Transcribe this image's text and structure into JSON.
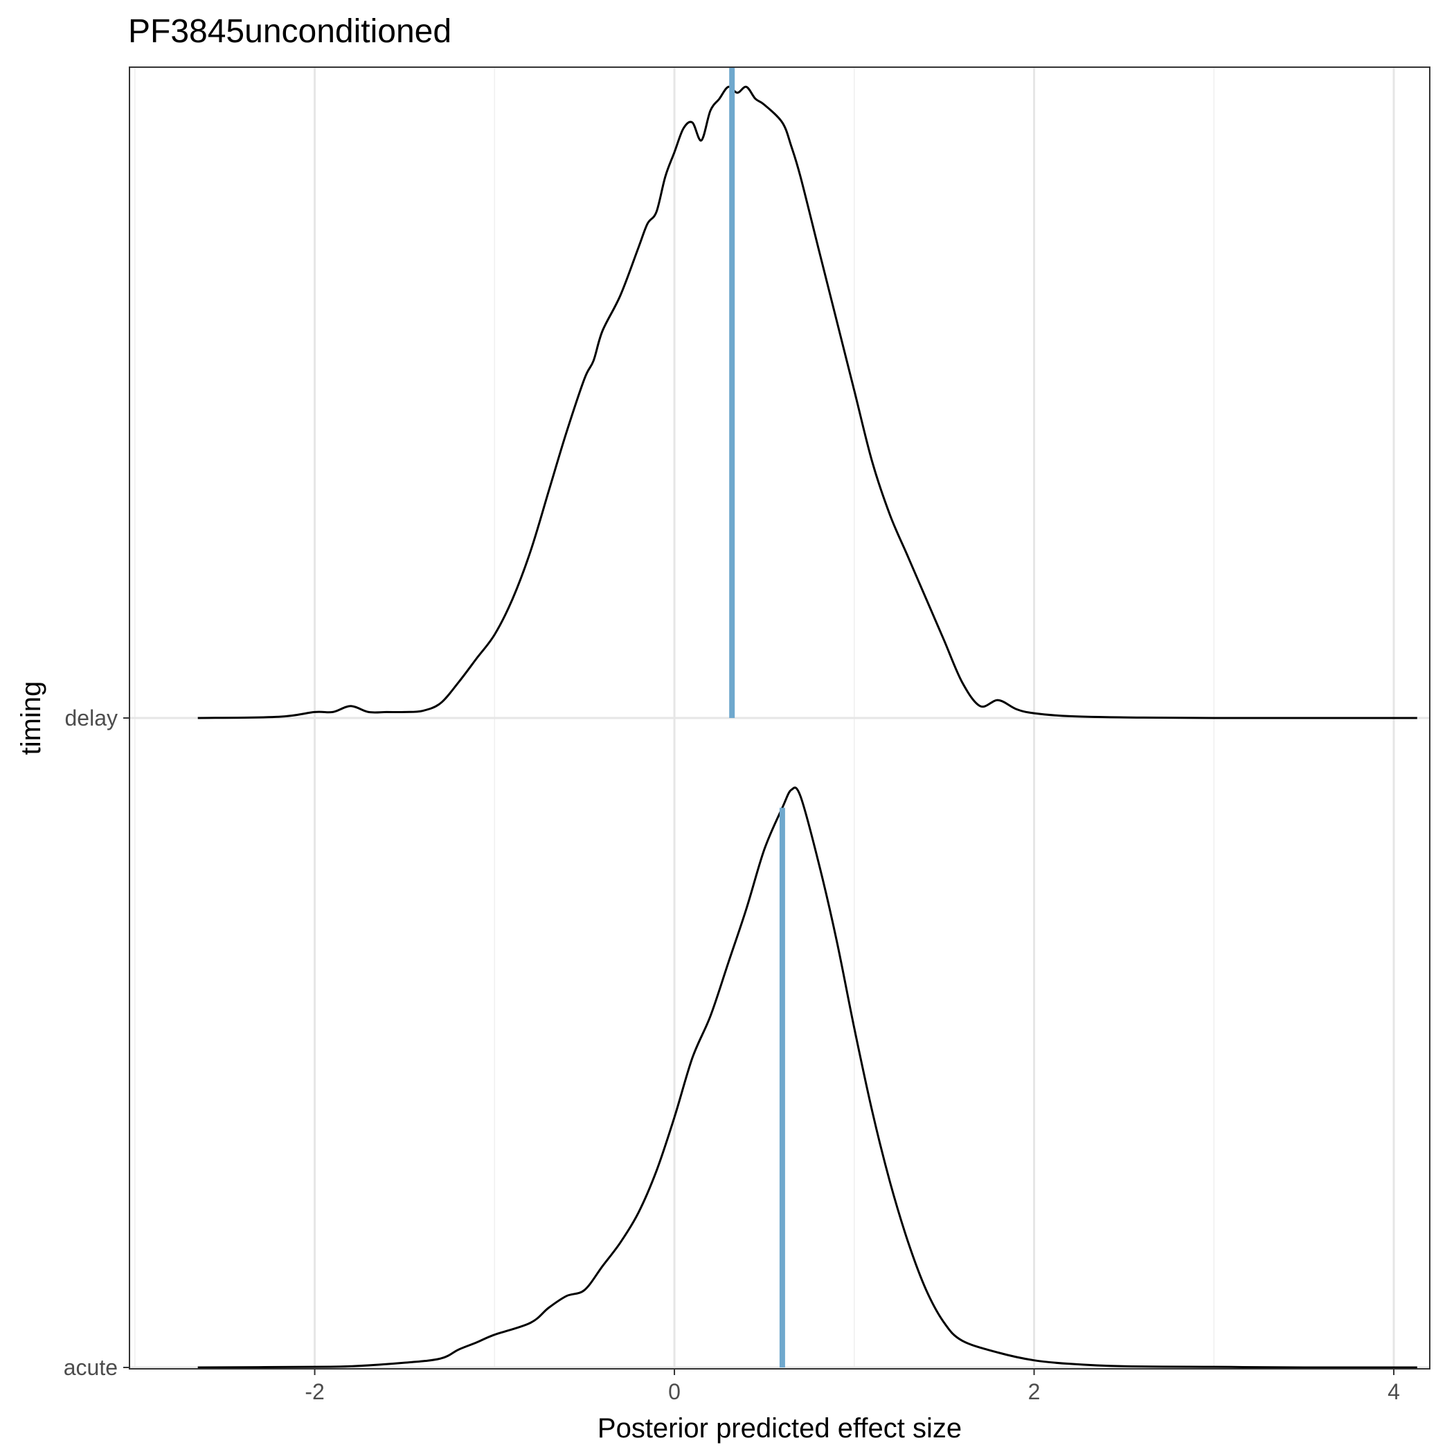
{
  "chart_data": {
    "type": "ridgeline",
    "title": "PF3845unconditioned",
    "xlabel": "Posterior predicted effect size",
    "ylabel": "timing",
    "xlim": [
      -3.03,
      4.2
    ],
    "x_ticks": [
      -2,
      0,
      2,
      4
    ],
    "x_tick_labels": [
      "-2",
      "0",
      "2",
      "4"
    ],
    "categories": [
      "acute",
      "delay"
    ],
    "grid": true,
    "accent_color": "#6fa8cd",
    "series": [
      {
        "name": "delay",
        "x": [
          -2.65,
          -2.2,
          -2.0,
          -1.9,
          -1.8,
          -1.7,
          -1.6,
          -1.5,
          -1.4,
          -1.3,
          -1.2,
          -1.1,
          -1.0,
          -0.9,
          -0.8,
          -0.7,
          -0.6,
          -0.5,
          -0.45,
          -0.4,
          -0.3,
          -0.2,
          -0.15,
          -0.1,
          -0.05,
          0.0,
          0.05,
          0.1,
          0.15,
          0.2,
          0.25,
          0.3,
          0.35,
          0.4,
          0.45,
          0.5,
          0.6,
          0.65,
          0.7,
          0.8,
          0.9,
          1.0,
          1.1,
          1.2,
          1.3,
          1.4,
          1.5,
          1.6,
          1.7,
          1.8,
          1.9,
          2.0,
          2.2,
          2.5,
          3.0,
          4.13
        ],
        "y": [
          0.0,
          0.002,
          0.01,
          0.01,
          0.02,
          0.01,
          0.01,
          0.01,
          0.012,
          0.025,
          0.06,
          0.1,
          0.14,
          0.2,
          0.28,
          0.38,
          0.48,
          0.57,
          0.6,
          0.65,
          0.71,
          0.79,
          0.83,
          0.85,
          0.91,
          0.95,
          0.99,
          1.0,
          0.97,
          1.02,
          1.04,
          1.06,
          1.05,
          1.06,
          1.04,
          1.03,
          1.0,
          0.96,
          0.91,
          0.79,
          0.67,
          0.55,
          0.43,
          0.34,
          0.27,
          0.2,
          0.13,
          0.06,
          0.02,
          0.03,
          0.015,
          0.008,
          0.003,
          0.001,
          0.0,
          0.0
        ],
        "mean": 0.32
      },
      {
        "name": "acute",
        "x": [
          -2.65,
          -2.0,
          -1.8,
          -1.5,
          -1.3,
          -1.2,
          -1.1,
          -1.0,
          -0.8,
          -0.7,
          -0.6,
          -0.5,
          -0.4,
          -0.3,
          -0.2,
          -0.1,
          0.0,
          0.1,
          0.2,
          0.3,
          0.4,
          0.5,
          0.6,
          0.65,
          0.7,
          0.8,
          0.9,
          1.0,
          1.1,
          1.2,
          1.3,
          1.4,
          1.5,
          1.6,
          1.8,
          2.0,
          2.2,
          2.5,
          3.0,
          3.5,
          4.13
        ],
        "y": [
          0.0,
          0.001,
          0.002,
          0.008,
          0.015,
          0.03,
          0.042,
          0.055,
          0.075,
          0.1,
          0.12,
          0.13,
          0.17,
          0.21,
          0.26,
          0.33,
          0.42,
          0.52,
          0.59,
          0.68,
          0.77,
          0.87,
          0.94,
          0.97,
          0.96,
          0.85,
          0.72,
          0.57,
          0.43,
          0.31,
          0.21,
          0.13,
          0.075,
          0.045,
          0.025,
          0.012,
          0.006,
          0.002,
          0.001,
          0.0,
          0.0
        ],
        "mean": 0.6
      }
    ]
  }
}
